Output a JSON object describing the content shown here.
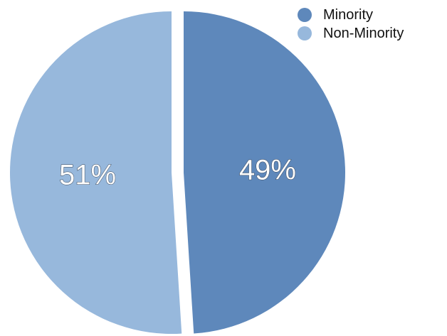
{
  "chart_data": {
    "type": "pie",
    "title": "",
    "categories": [
      "Minority",
      "Non-Minority"
    ],
    "values": [
      49,
      51
    ],
    "labels": [
      "49%",
      "51%"
    ],
    "colors": [
      "#5e88bb",
      "#97b8dc"
    ],
    "legend_position": "top-right",
    "start_angle": "12 o'clock",
    "direction": "clockwise",
    "exploded": true
  }
}
